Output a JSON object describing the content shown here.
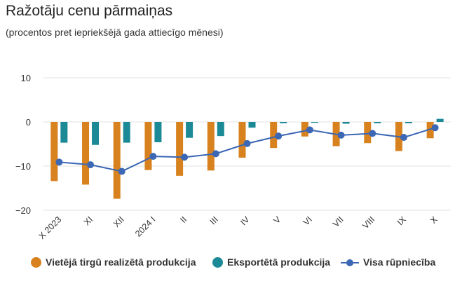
{
  "title": "Ražotāju cenu pārmaiņas",
  "subtitle": "(procentos pret iepriekšējā gada attiecīgo mēnesi)",
  "colors": {
    "domestic": "#d8821f",
    "export": "#1b8a96",
    "total": "#3b67b5",
    "grid": "#e0e0e0",
    "axis_text": "#333333"
  },
  "chart_data": {
    "type": "bar+line",
    "categories": [
      "X 2023",
      "XI",
      "XII",
      "2024 I",
      "II",
      "III",
      "IV",
      "V",
      "VI",
      "VII",
      "VIII",
      "IX",
      "X"
    ],
    "ylim": [
      -20,
      10
    ],
    "yticks": [
      10,
      0,
      -10,
      -20
    ],
    "grid": true,
    "legend_position": "bottom",
    "series": [
      {
        "name": "Vietējā tirgū realizētā produkcija",
        "type": "bar",
        "values": [
          -13.4,
          -14.2,
          -17.4,
          -10.9,
          -12.2,
          -11.0,
          -8.1,
          -5.9,
          -3.3,
          -5.5,
          -4.8,
          -6.6,
          -3.7
        ]
      },
      {
        "name": "Eksportētā produkcija",
        "type": "bar",
        "values": [
          -4.7,
          -5.2,
          -4.7,
          -4.6,
          -3.6,
          -3.2,
          -1.3,
          -0.3,
          -0.2,
          -0.4,
          -0.3,
          -0.3,
          0.7
        ]
      },
      {
        "name": "Visa rūpniecība",
        "type": "line",
        "values": [
          -9.1,
          -9.7,
          -11.2,
          -7.8,
          -8.0,
          -7.2,
          -4.9,
          -3.2,
          -1.8,
          -3.0,
          -2.6,
          -3.5,
          -1.3
        ]
      }
    ]
  }
}
